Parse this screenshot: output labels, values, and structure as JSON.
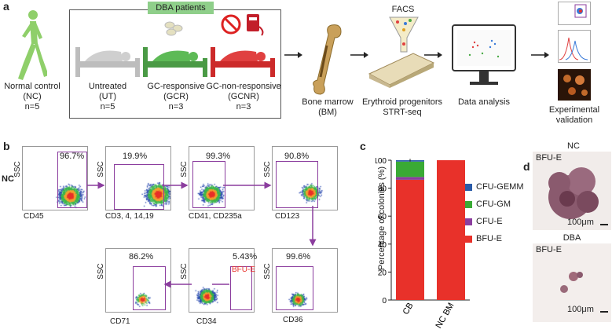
{
  "panel_a": {
    "letter": "a",
    "normal_control": {
      "label": "Normal control",
      "abbr": "(NC)",
      "n": "n=5"
    },
    "dba_header": "DBA patients",
    "groups": [
      {
        "label": "Untreated",
        "abbr": "(UT)",
        "n": "n=5"
      },
      {
        "label": "GC-responsive",
        "abbr": "(GCR)",
        "n": "n=3"
      },
      {
        "label": "GC-non-responsive",
        "abbr": "(GCNR)",
        "n": "n=3"
      }
    ],
    "bone_marrow": {
      "label": "Bone marrow",
      "abbr": "(BM)"
    },
    "facs": "FACS",
    "erythroid": {
      "label": "Erythroid progenitors",
      "method": "STRT-seq"
    },
    "analysis": "Data analysis",
    "validation": {
      "line1": "Experimental",
      "line2": "validation"
    }
  },
  "panel_b": {
    "letter": "b",
    "row_label": "NC",
    "y_axis": "SSC",
    "plots": [
      {
        "x_axis": "CD45",
        "gate_pct": "96.7%"
      },
      {
        "x_axis": "CD3, 4, 14,19",
        "gate_pct": "19.9%"
      },
      {
        "x_axis": "CD41, CD235a",
        "gate_pct": "99.3%"
      },
      {
        "x_axis": "CD123",
        "gate_pct": "90.8%"
      },
      {
        "x_axis": "CD36",
        "gate_pct": "99.6%"
      },
      {
        "x_axis": "CD34",
        "gate_pct": "5.43%",
        "gate_name": "BFU-E"
      },
      {
        "x_axis": "CD71",
        "gate_pct": "86.2%"
      }
    ]
  },
  "panel_c": {
    "letter": "c",
    "chart_data": {
      "type": "bar",
      "stacked": true,
      "categories": [
        "CB",
        "NC BM"
      ],
      "series": [
        {
          "name": "BFU-E",
          "color": "#e8312a",
          "values": [
            86,
            100
          ]
        },
        {
          "name": "CFU-E",
          "color": "#8b3d9e",
          "values": [
            2,
            0
          ]
        },
        {
          "name": "CFU-GM",
          "color": "#3aaa35",
          "values": [
            11,
            0
          ]
        },
        {
          "name": "CFU-GEMM",
          "color": "#2a5ba8",
          "values": [
            1,
            0
          ]
        }
      ],
      "ylabel": "Percentage of colonies (%)",
      "ylim": [
        0,
        100
      ],
      "yticks": [
        "0",
        "20",
        "40",
        "60",
        "80",
        "100"
      ],
      "legend": [
        "CFU-GEMM",
        "CFU-GM",
        "CFU-E",
        "BFU-E"
      ],
      "legend_placement": "right"
    }
  },
  "panel_d": {
    "letter": "d",
    "top": {
      "title": "NC",
      "label": "BFU-E",
      "scale": "100μm"
    },
    "bottom": {
      "title": "DBA",
      "label": "BFU-E",
      "scale": "100μm"
    }
  }
}
